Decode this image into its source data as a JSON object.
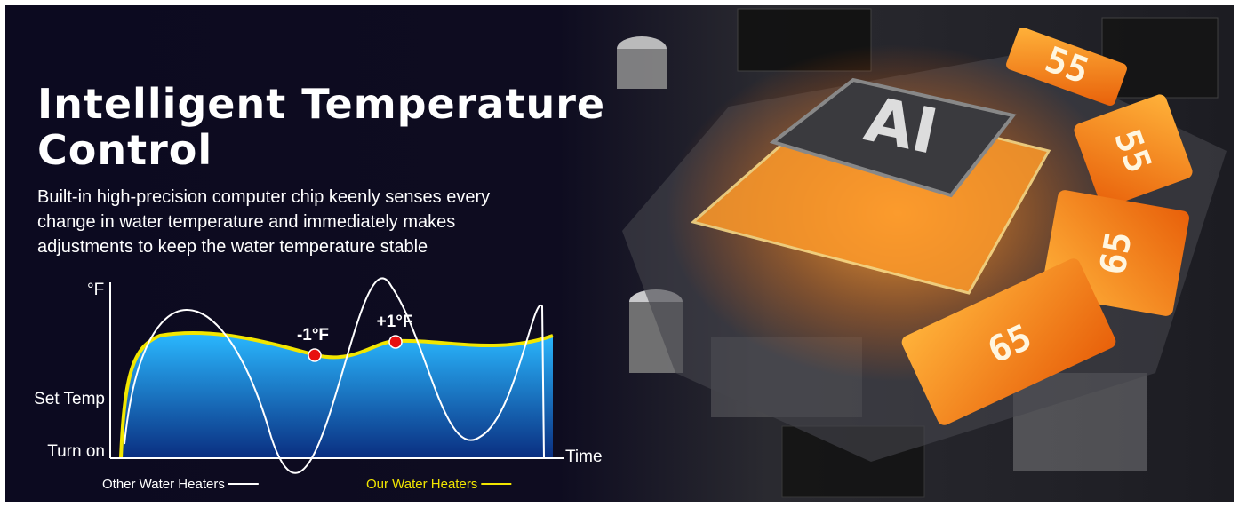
{
  "heading": {
    "title_line1": "Intelligent  Temperature",
    "title_line2": "Control",
    "description_lines": [
      "Built-in high-precision computer chip keenly senses every",
      "change in water temperature and immediately makes",
      "adjustments to keep the water temperature stable"
    ]
  },
  "diagram": {
    "y_axis_label": "°F",
    "x_axis_label": "Time",
    "level_labels": [
      "Set Temp",
      "Turn on"
    ],
    "annotations": [
      "-1°F",
      "+1°F"
    ],
    "legend": [
      {
        "name": "Other Water Heaters",
        "color": "#ffffff"
      },
      {
        "name": "Our Water Heaters",
        "color": "#f2e600"
      }
    ]
  },
  "chip": {
    "label": "AI",
    "displays": [
      "55",
      "55",
      "65",
      "65"
    ]
  }
}
